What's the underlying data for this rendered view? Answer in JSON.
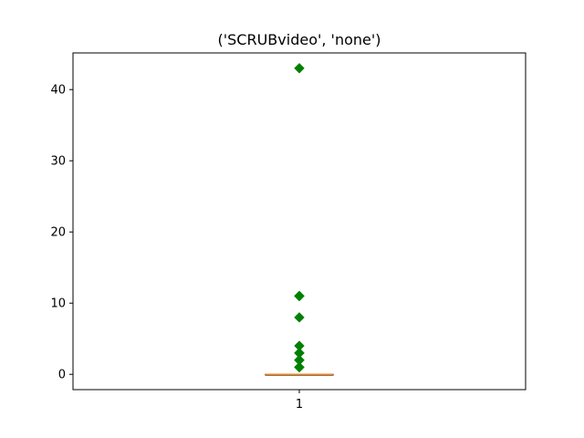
{
  "chart_data": {
    "type": "box",
    "title": "('SCRUBvideo', 'none')",
    "xlabel": "",
    "ylabel": "",
    "categories": [
      "1"
    ],
    "ylim": [
      -2.15,
      45.15
    ],
    "yticks": [
      0,
      10,
      20,
      30,
      40
    ],
    "box": {
      "q1": 0,
      "median": 0,
      "q3": 0,
      "whisker_low": 0,
      "whisker_high": 0
    },
    "outliers": [
      1,
      1,
      2,
      2,
      3,
      3,
      4,
      8,
      11,
      11,
      43
    ],
    "colors": {
      "box": "#000000",
      "median": "#ff7f0e",
      "outlier": "#008000"
    },
    "grid": false,
    "legend": "none"
  }
}
